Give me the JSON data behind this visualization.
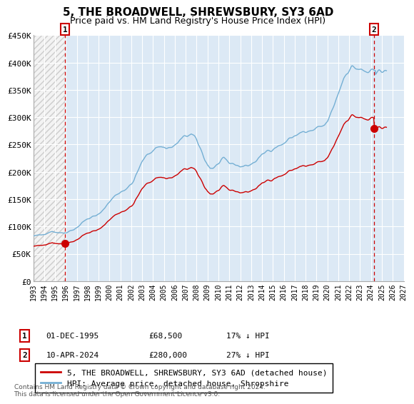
{
  "title": "5, THE BROADWELL, SHREWSBURY, SY3 6AD",
  "subtitle": "Price paid vs. HM Land Registry's House Price Index (HPI)",
  "ylim": [
    0,
    450000
  ],
  "yticks": [
    0,
    50000,
    100000,
    150000,
    200000,
    250000,
    300000,
    350000,
    400000,
    450000
  ],
  "ytick_labels": [
    "£0",
    "£50K",
    "£100K",
    "£150K",
    "£200K",
    "£250K",
    "£300K",
    "£350K",
    "£400K",
    "£450K"
  ],
  "xlim_start": 1993.0,
  "xlim_end": 2027.0,
  "xtick_years": [
    1993,
    1994,
    1995,
    1996,
    1997,
    1998,
    1999,
    2000,
    2001,
    2002,
    2003,
    2004,
    2005,
    2006,
    2007,
    2008,
    2009,
    2010,
    2011,
    2012,
    2013,
    2014,
    2015,
    2016,
    2017,
    2018,
    2019,
    2020,
    2021,
    2022,
    2023,
    2024,
    2025,
    2026,
    2027
  ],
  "hpi_color": "#74afd4",
  "price_color": "#cc0000",
  "marker_color": "#cc0000",
  "dashed_line_color": "#cc0000",
  "chart_bg_color": "#dce9f5",
  "hatch_bg_color": "#cccccc",
  "sale1_x": 1995.92,
  "sale1_y": 68500,
  "sale2_x": 2024.28,
  "sale2_y": 280000,
  "legend_label1": "5, THE BROADWELL, SHREWSBURY, SY3 6AD (detached house)",
  "legend_label2": "HPI: Average price, detached house, Shropshire",
  "copyright_text": "Contains HM Land Registry data © Crown copyright and database right 2024.\nThis data is licensed under the Open Government Licence v3.0.",
  "hpi_data_quarterly": {
    "x": [
      1993.0,
      1993.25,
      1993.5,
      1993.75,
      1994.0,
      1994.25,
      1994.5,
      1994.75,
      1995.0,
      1995.25,
      1995.5,
      1995.75,
      1996.0,
      1996.25,
      1996.5,
      1996.75,
      1997.0,
      1997.25,
      1997.5,
      1997.75,
      1998.0,
      1998.25,
      1998.5,
      1998.75,
      1999.0,
      1999.25,
      1999.5,
      1999.75,
      2000.0,
      2000.25,
      2000.5,
      2000.75,
      2001.0,
      2001.25,
      2001.5,
      2001.75,
      2002.0,
      2002.25,
      2002.5,
      2002.75,
      2003.0,
      2003.25,
      2003.5,
      2003.75,
      2004.0,
      2004.25,
      2004.5,
      2004.75,
      2005.0,
      2005.25,
      2005.5,
      2005.75,
      2006.0,
      2006.25,
      2006.5,
      2006.75,
      2007.0,
      2007.25,
      2007.5,
      2007.75,
      2008.0,
      2008.25,
      2008.5,
      2008.75,
      2009.0,
      2009.25,
      2009.5,
      2009.75,
      2010.0,
      2010.25,
      2010.5,
      2010.75,
      2011.0,
      2011.25,
      2011.5,
      2011.75,
      2012.0,
      2012.25,
      2012.5,
      2012.75,
      2013.0,
      2013.25,
      2013.5,
      2013.75,
      2014.0,
      2014.25,
      2014.5,
      2014.75,
      2015.0,
      2015.25,
      2015.5,
      2015.75,
      2016.0,
      2016.25,
      2016.5,
      2016.75,
      2017.0,
      2017.25,
      2017.5,
      2017.75,
      2018.0,
      2018.25,
      2018.5,
      2018.75,
      2019.0,
      2019.25,
      2019.5,
      2019.75,
      2020.0,
      2020.25,
      2020.5,
      2020.75,
      2021.0,
      2021.25,
      2021.5,
      2021.75,
      2022.0,
      2022.25,
      2022.5,
      2022.75,
      2023.0,
      2023.25,
      2023.5,
      2023.75,
      2024.0,
      2024.25
    ],
    "y": [
      82000,
      83000,
      84000,
      84500,
      86000,
      88000,
      90000,
      91000,
      90000,
      89000,
      88500,
      88000,
      89000,
      91000,
      93000,
      95000,
      98000,
      102000,
      107000,
      111000,
      114000,
      116000,
      118000,
      119000,
      122000,
      127000,
      133000,
      139000,
      145000,
      151000,
      156000,
      160000,
      163000,
      166000,
      169000,
      172000,
      177000,
      185000,
      196000,
      208000,
      218000,
      226000,
      232000,
      236000,
      240000,
      244000,
      246000,
      246000,
      245000,
      244000,
      244000,
      245000,
      248000,
      253000,
      258000,
      262000,
      265000,
      268000,
      268000,
      264000,
      257000,
      247000,
      235000,
      223000,
      213000,
      207000,
      207000,
      210000,
      215000,
      220000,
      222000,
      220000,
      216000,
      215000,
      214000,
      212000,
      210000,
      210000,
      211000,
      212000,
      214000,
      217000,
      221000,
      226000,
      230000,
      235000,
      239000,
      241000,
      243000,
      245000,
      247000,
      249000,
      252000,
      256000,
      260000,
      263000,
      266000,
      269000,
      271000,
      272000,
      272000,
      273000,
      274000,
      276000,
      278000,
      281000,
      283000,
      285000,
      292000,
      302000,
      316000,
      330000,
      344000,
      358000,
      372000,
      382000,
      388000,
      391000,
      391000,
      389000,
      386000,
      384000,
      383000,
      382000,
      382000,
      383000
    ]
  }
}
